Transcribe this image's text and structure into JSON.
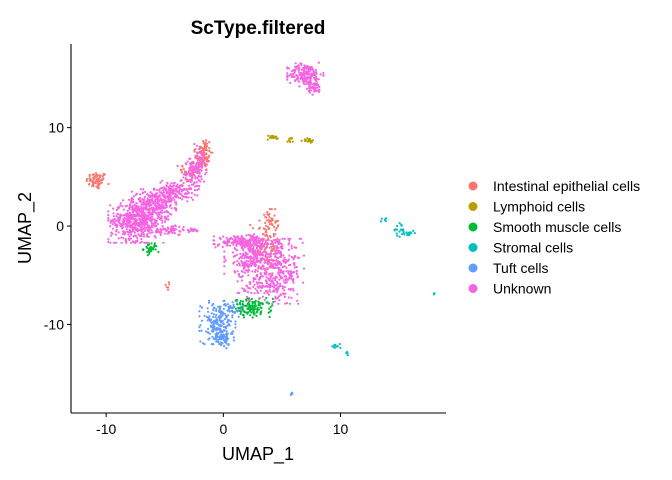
{
  "chart_data": {
    "type": "scatter",
    "title": "ScType.filtered",
    "xlabel": "UMAP_1",
    "ylabel": "UMAP_2",
    "xlim": [
      -13,
      19
    ],
    "ylim": [
      -19,
      18.5
    ],
    "x_ticks": [
      {
        "value": -10,
        "label": "-10"
      },
      {
        "value": 0,
        "label": "0"
      },
      {
        "value": 10,
        "label": "10"
      }
    ],
    "y_ticks": [
      {
        "value": -10,
        "label": "-10"
      },
      {
        "value": 0,
        "label": "0"
      },
      {
        "value": 10,
        "label": "10"
      }
    ],
    "grid": false,
    "legend_position": "right",
    "series": [
      {
        "name": "Intestinal epithelial cells",
        "color": "#F8766D",
        "clusters": [
          {
            "x": -10.8,
            "y": 4.6,
            "sx": 0.45,
            "sy": 0.45,
            "n": 70
          },
          {
            "x": -1.7,
            "y": 7.3,
            "sx": 0.35,
            "sy": 0.9,
            "n": 90
          },
          {
            "x": -2.8,
            "y": 5.5,
            "sx": 0.5,
            "sy": 0.6,
            "n": 40
          },
          {
            "x": 3.6,
            "y": -1.8,
            "sx": 0.6,
            "sy": 1.6,
            "n": 120
          },
          {
            "x": 4.2,
            "y": 0.5,
            "sx": 0.3,
            "sy": 0.4,
            "n": 25
          },
          {
            "x": -4.8,
            "y": -6.1,
            "sx": 0.08,
            "sy": 0.2,
            "n": 6
          }
        ]
      },
      {
        "name": "Lymphoid cells",
        "color": "#B79F00",
        "clusters": [
          {
            "x": 4.2,
            "y": 9.0,
            "sx": 0.25,
            "sy": 0.12,
            "n": 18
          },
          {
            "x": 5.7,
            "y": 8.7,
            "sx": 0.12,
            "sy": 0.15,
            "n": 10
          },
          {
            "x": 7.2,
            "y": 8.7,
            "sx": 0.3,
            "sy": 0.1,
            "n": 22
          }
        ]
      },
      {
        "name": "Smooth muscle cells",
        "color": "#00BA38",
        "clusters": [
          {
            "x": -6.2,
            "y": -2.3,
            "sx": 0.3,
            "sy": 0.3,
            "n": 35
          },
          {
            "x": 2.5,
            "y": -8.3,
            "sx": 0.8,
            "sy": 0.45,
            "n": 130
          }
        ]
      },
      {
        "name": "Stromal cells",
        "color": "#00BFC4",
        "clusters": [
          {
            "x": 13.7,
            "y": 0.7,
            "sx": 0.12,
            "sy": 0.12,
            "n": 6
          },
          {
            "x": 15.0,
            "y": -0.4,
            "sx": 0.25,
            "sy": 0.35,
            "n": 20
          },
          {
            "x": 15.9,
            "y": -0.7,
            "sx": 0.2,
            "sy": 0.15,
            "n": 14
          },
          {
            "x": 18.0,
            "y": -6.9,
            "sx": 0.05,
            "sy": 0.05,
            "n": 3
          },
          {
            "x": 9.7,
            "y": -12.2,
            "sx": 0.2,
            "sy": 0.2,
            "n": 10
          },
          {
            "x": 10.6,
            "y": -12.9,
            "sx": 0.1,
            "sy": 0.1,
            "n": 4
          }
        ]
      },
      {
        "name": "Tuft cells",
        "color": "#619CFF",
        "clusters": [
          {
            "x": -0.5,
            "y": -9.8,
            "sx": 0.7,
            "sy": 1.0,
            "n": 160
          },
          {
            "x": -0.2,
            "y": -11.3,
            "sx": 0.5,
            "sy": 0.5,
            "n": 70
          },
          {
            "x": 0.8,
            "y": -8.4,
            "sx": 0.4,
            "sy": 0.4,
            "n": 30
          },
          {
            "x": 5.8,
            "y": -17.0,
            "sx": 0.05,
            "sy": 0.15,
            "n": 4
          }
        ]
      },
      {
        "name": "Unknown",
        "color": "#F564E3",
        "clusters": [
          {
            "x": 7.0,
            "y": 15.4,
            "sx": 0.7,
            "sy": 0.55,
            "n": 200
          },
          {
            "x": 7.8,
            "y": 14.0,
            "sx": 0.3,
            "sy": 0.3,
            "n": 40
          },
          {
            "x": -7.4,
            "y": 0.5,
            "sx": 1.1,
            "sy": 1.0,
            "n": 520
          },
          {
            "x": -6.0,
            "y": 2.2,
            "sx": 0.9,
            "sy": 0.7,
            "n": 260
          },
          {
            "x": -4.2,
            "y": 3.5,
            "sx": 0.9,
            "sy": 0.5,
            "n": 160
          },
          {
            "x": -2.6,
            "y": 5.3,
            "sx": 0.5,
            "sy": 0.7,
            "n": 90
          },
          {
            "x": -1.9,
            "y": 6.8,
            "sx": 0.3,
            "sy": 0.7,
            "n": 40
          },
          {
            "x": -4.5,
            "y": -0.4,
            "sx": 0.7,
            "sy": 0.25,
            "n": 60
          },
          {
            "x": -2.5,
            "y": -0.4,
            "sx": 0.3,
            "sy": 0.1,
            "n": 12
          },
          {
            "x": 1.8,
            "y": -1.6,
            "sx": 1.2,
            "sy": 0.35,
            "n": 190
          },
          {
            "x": 2.5,
            "y": -3.3,
            "sx": 1.1,
            "sy": 0.9,
            "n": 260
          },
          {
            "x": 4.9,
            "y": -4.6,
            "sx": 0.9,
            "sy": 1.5,
            "n": 260
          },
          {
            "x": 3.2,
            "y": -6.2,
            "sx": 0.9,
            "sy": 0.6,
            "n": 90
          }
        ]
      }
    ]
  }
}
